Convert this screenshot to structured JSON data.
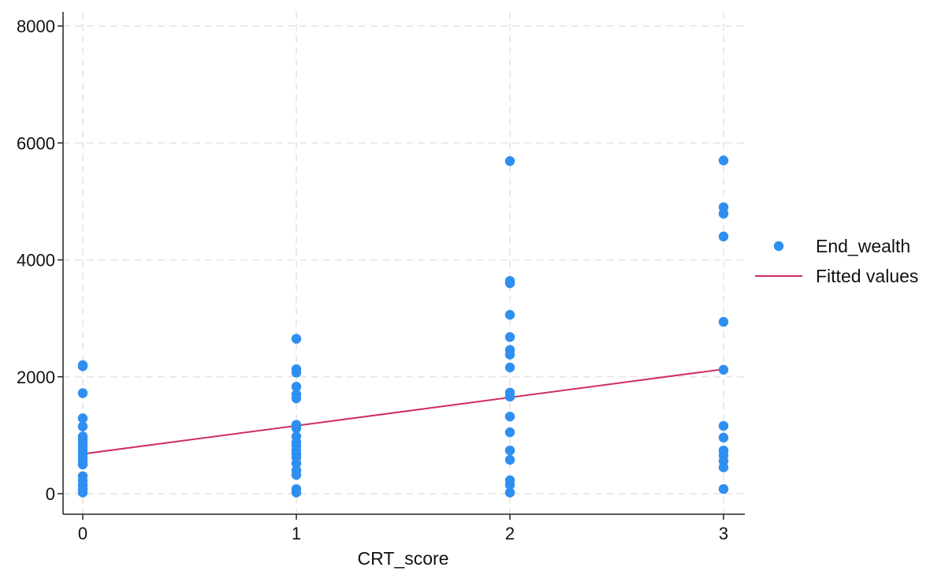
{
  "chart_data": {
    "type": "scatter",
    "title": "",
    "xlabel": "CRT_score",
    "ylabel": "",
    "xlim": [
      0,
      3
    ],
    "ylim": [
      0,
      8000
    ],
    "x_ticks": [
      "0",
      "1",
      "2",
      "3"
    ],
    "y_ticks": [
      "0",
      "2000",
      "4000",
      "6000",
      "8000"
    ],
    "grid": true,
    "legend_position": "right",
    "series": [
      {
        "name": "End_wealth",
        "kind": "scatter",
        "color": "#2f8ff0",
        "points": [
          [
            0,
            2200
          ],
          [
            0,
            2180
          ],
          [
            0,
            1720
          ],
          [
            0,
            1290
          ],
          [
            0,
            1150
          ],
          [
            0,
            980
          ],
          [
            0,
            920
          ],
          [
            0,
            860
          ],
          [
            0,
            800
          ],
          [
            0,
            740
          ],
          [
            0,
            680
          ],
          [
            0,
            620
          ],
          [
            0,
            560
          ],
          [
            0,
            500
          ],
          [
            0,
            300
          ],
          [
            0,
            220
          ],
          [
            0,
            150
          ],
          [
            0,
            80
          ],
          [
            0,
            20
          ],
          [
            1,
            2650
          ],
          [
            1,
            2130
          ],
          [
            1,
            2070
          ],
          [
            1,
            1830
          ],
          [
            1,
            1700
          ],
          [
            1,
            1630
          ],
          [
            1,
            1180
          ],
          [
            1,
            1120
          ],
          [
            1,
            980
          ],
          [
            1,
            880
          ],
          [
            1,
            820
          ],
          [
            1,
            740
          ],
          [
            1,
            680
          ],
          [
            1,
            620
          ],
          [
            1,
            520
          ],
          [
            1,
            400
          ],
          [
            1,
            320
          ],
          [
            1,
            80
          ],
          [
            1,
            20
          ],
          [
            2,
            5690
          ],
          [
            2,
            3640
          ],
          [
            2,
            3600
          ],
          [
            2,
            3060
          ],
          [
            2,
            2680
          ],
          [
            2,
            2460
          ],
          [
            2,
            2380
          ],
          [
            2,
            2160
          ],
          [
            2,
            1730
          ],
          [
            2,
            1660
          ],
          [
            2,
            1320
          ],
          [
            2,
            1050
          ],
          [
            2,
            740
          ],
          [
            2,
            580
          ],
          [
            2,
            230
          ],
          [
            2,
            150
          ],
          [
            2,
            20
          ],
          [
            3,
            5700
          ],
          [
            3,
            4900
          ],
          [
            3,
            4790
          ],
          [
            3,
            4400
          ],
          [
            3,
            2940
          ],
          [
            3,
            2120
          ],
          [
            3,
            1160
          ],
          [
            3,
            960
          ],
          [
            3,
            740
          ],
          [
            3,
            660
          ],
          [
            3,
            560
          ],
          [
            3,
            450
          ],
          [
            3,
            80
          ]
        ]
      },
      {
        "name": "Fitted values",
        "kind": "line",
        "color": "#cf2f5c",
        "x": [
          0,
          3
        ],
        "y": [
          680,
          2130
        ]
      }
    ]
  }
}
